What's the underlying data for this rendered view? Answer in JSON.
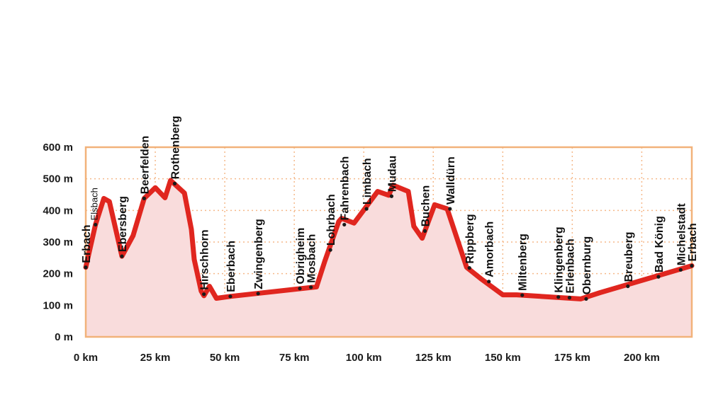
{
  "chart_data": {
    "type": "area",
    "xlim": [
      0,
      218
    ],
    "ylim": [
      0,
      600
    ],
    "x_unit": "km",
    "y_unit": "m",
    "x_ticks": [
      0,
      25,
      50,
      75,
      100,
      125,
      150,
      175,
      200
    ],
    "x_tick_labels": [
      "0 km",
      "25 km",
      "50 km",
      "75 km",
      "100 km",
      "125 km",
      "150 km",
      "175 km",
      "200 km"
    ],
    "y_ticks": [
      0,
      100,
      200,
      300,
      400,
      500,
      600
    ],
    "y_tick_labels": [
      "0 m",
      "100 m",
      "200 m",
      "300 m",
      "400 m",
      "500 m",
      "600 m"
    ],
    "grid": true,
    "colors": {
      "line": "#e0261f",
      "fill": "#f9dcdc",
      "frame": "#f2b27a",
      "grid": "#f5b98a",
      "marker": "#1a1a1a"
    },
    "profile": [
      [
        0,
        220
      ],
      [
        3.5,
        355
      ],
      [
        6.5,
        438
      ],
      [
        8.5,
        428
      ],
      [
        13,
        255
      ],
      [
        17,
        320
      ],
      [
        21,
        438
      ],
      [
        25,
        472
      ],
      [
        28.5,
        440
      ],
      [
        30.5,
        495
      ],
      [
        35.5,
        455
      ],
      [
        38,
        340
      ],
      [
        39,
        245
      ],
      [
        41.5,
        145
      ],
      [
        42.5,
        130
      ],
      [
        44.5,
        160
      ],
      [
        47,
        122
      ],
      [
        52,
        128
      ],
      [
        83,
        158
      ],
      [
        86,
        240
      ],
      [
        91,
        365
      ],
      [
        92,
        375
      ],
      [
        96.5,
        360
      ],
      [
        105,
        460
      ],
      [
        109,
        448
      ],
      [
        110.5,
        480
      ],
      [
        116,
        460
      ],
      [
        118,
        350
      ],
      [
        121,
        312
      ],
      [
        125.5,
        418
      ],
      [
        130,
        405
      ],
      [
        137,
        220
      ],
      [
        142,
        185
      ],
      [
        150,
        133
      ],
      [
        155,
        133
      ],
      [
        178,
        120
      ],
      [
        185,
        140
      ],
      [
        218,
        225
      ]
    ],
    "places": [
      {
        "name": "Erbach",
        "km": 0,
        "elev": 220
      },
      {
        "name": "Elsbach",
        "km": 3.5,
        "elev": 355
      },
      {
        "name": "Ebersberg",
        "km": 13,
        "elev": 255
      },
      {
        "name": "Beerfelden",
        "km": 21,
        "elev": 438
      },
      {
        "name": "Rothenberg",
        "km": 32,
        "elev": 485
      },
      {
        "name": "Hirschhorn",
        "km": 42.5,
        "elev": 135
      },
      {
        "name": "Eberbach",
        "km": 52,
        "elev": 128
      },
      {
        "name": "Zwingenberg",
        "km": 62,
        "elev": 137
      },
      {
        "name": "Obrigheim",
        "km": 77,
        "elev": 153
      },
      {
        "name": "Mosbach",
        "km": 81,
        "elev": 157
      },
      {
        "name": "Lohrbach",
        "km": 88,
        "elev": 275
      },
      {
        "name": "Fahrenbach",
        "km": 93,
        "elev": 355
      },
      {
        "name": "Limbach",
        "km": 101,
        "elev": 405
      },
      {
        "name": "Mudau",
        "km": 110,
        "elev": 445
      },
      {
        "name": "Buchen",
        "km": 122,
        "elev": 335
      },
      {
        "name": "Walldürn",
        "km": 131,
        "elev": 405
      },
      {
        "name": "Rippberg",
        "km": 138,
        "elev": 218
      },
      {
        "name": "Amorbach",
        "km": 145,
        "elev": 175
      },
      {
        "name": "Miltenberg",
        "km": 157,
        "elev": 132
      },
      {
        "name": "Klingenberg",
        "km": 170,
        "elev": 126
      },
      {
        "name": "Erlenbach",
        "km": 174,
        "elev": 124
      },
      {
        "name": "Obernburg",
        "km": 180,
        "elev": 120
      },
      {
        "name": "Breuberg",
        "km": 195,
        "elev": 160
      },
      {
        "name": "Bad König",
        "km": 206,
        "elev": 190
      },
      {
        "name": "Michelstadt",
        "km": 214,
        "elev": 212
      },
      {
        "name": "Erbach",
        "km": 218,
        "elev": 225
      }
    ]
  }
}
